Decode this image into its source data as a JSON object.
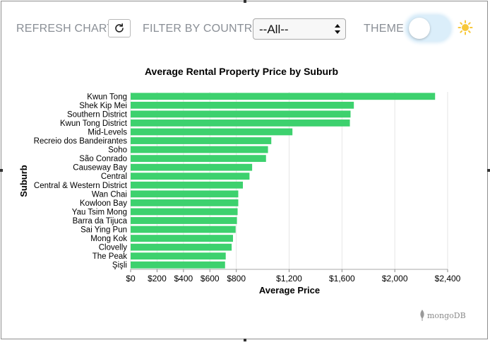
{
  "toolbar": {
    "refresh_label": "REFRESH CHART",
    "filter_label": "FILTER BY COUNTRY",
    "filter_value": "--All--",
    "theme_label": "THEME",
    "theme_dark": false
  },
  "icons": {
    "refresh": "refresh-icon",
    "theme": "sun-icon",
    "brand": "mongodb-leaf-icon"
  },
  "brand": {
    "text": "mongoDB"
  },
  "colors": {
    "bar": "#3dd16e",
    "grid": "#e6e6e6",
    "text": "#000000"
  },
  "chart_data": {
    "type": "bar",
    "orientation": "horizontal",
    "title": "Average Rental Property Price by Suburb",
    "xlabel": "Average Price",
    "ylabel": "Suburb",
    "xlim": [
      0,
      2400
    ],
    "x_ticks": [
      0,
      200,
      400,
      600,
      800,
      1200,
      1600,
      2000,
      2400
    ],
    "x_tick_labels": [
      "$0",
      "$200",
      "$400",
      "$600",
      "$800",
      "$1,200",
      "$1,600",
      "$2,000",
      "$2,400"
    ],
    "grid": true,
    "categories": [
      "Kwun Tong",
      "Shek Kip Mei",
      "Southern District",
      "Kwun Tong District",
      "Mid-Levels",
      "Recreio dos Bandeirantes",
      "Soho",
      "São Conrado",
      "Causeway Bay",
      "Central",
      "Central & Western District",
      "Wan Chai",
      "Kowloon Bay",
      "Yau Tsim Mong",
      "Barra da Tijuca",
      "Sai Ying Pun",
      "Mong Kok",
      "Clovelly",
      "The Peak",
      "Şişli"
    ],
    "values": [
      2305,
      1690,
      1665,
      1660,
      1225,
      1065,
      1040,
      1025,
      920,
      900,
      850,
      815,
      815,
      810,
      805,
      795,
      775,
      765,
      720,
      715
    ]
  }
}
